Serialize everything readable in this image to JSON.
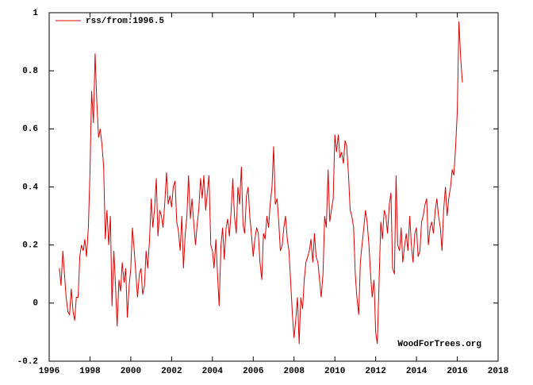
{
  "chart_data": {
    "type": "line",
    "annotation": "WoodForTrees.org",
    "x": [
      1996.5,
      1996.58,
      1996.67,
      1996.75,
      1996.83,
      1996.92,
      1997.0,
      1997.08,
      1997.17,
      1997.25,
      1997.33,
      1997.42,
      1997.5,
      1997.58,
      1997.67,
      1997.75,
      1997.83,
      1997.92,
      1998.0,
      1998.08,
      1998.17,
      1998.25,
      1998.33,
      1998.42,
      1998.5,
      1998.58,
      1998.67,
      1998.75,
      1998.83,
      1998.92,
      1999.0,
      1999.08,
      1999.17,
      1999.25,
      1999.33,
      1999.42,
      1999.5,
      1999.58,
      1999.67,
      1999.75,
      1999.83,
      1999.92,
      2000.0,
      2000.08,
      2000.17,
      2000.25,
      2000.33,
      2000.42,
      2000.5,
      2000.58,
      2000.67,
      2000.75,
      2000.83,
      2000.92,
      2001.0,
      2001.08,
      2001.17,
      2001.25,
      2001.33,
      2001.42,
      2001.5,
      2001.58,
      2001.67,
      2001.75,
      2001.83,
      2001.92,
      2002.0,
      2002.08,
      2002.17,
      2002.25,
      2002.33,
      2002.42,
      2002.5,
      2002.58,
      2002.67,
      2002.75,
      2002.83,
      2002.92,
      2003.0,
      2003.08,
      2003.17,
      2003.25,
      2003.33,
      2003.42,
      2003.5,
      2003.58,
      2003.67,
      2003.75,
      2003.83,
      2003.92,
      2004.0,
      2004.08,
      2004.17,
      2004.25,
      2004.33,
      2004.42,
      2004.5,
      2004.58,
      2004.67,
      2004.75,
      2004.83,
      2004.92,
      2005.0,
      2005.08,
      2005.17,
      2005.25,
      2005.33,
      2005.42,
      2005.5,
      2005.58,
      2005.67,
      2005.75,
      2005.83,
      2005.92,
      2006.0,
      2006.08,
      2006.17,
      2006.25,
      2006.33,
      2006.42,
      2006.5,
      2006.58,
      2006.67,
      2006.75,
      2006.83,
      2006.92,
      2007.0,
      2007.08,
      2007.17,
      2007.25,
      2007.33,
      2007.42,
      2007.5,
      2007.58,
      2007.67,
      2007.75,
      2007.83,
      2007.92,
      2008.0,
      2008.08,
      2008.17,
      2008.25,
      2008.33,
      2008.42,
      2008.5,
      2008.58,
      2008.67,
      2008.75,
      2008.83,
      2008.92,
      2009.0,
      2009.08,
      2009.17,
      2009.25,
      2009.33,
      2009.42,
      2009.5,
      2009.58,
      2009.67,
      2009.75,
      2009.83,
      2009.92,
      2010.0,
      2010.08,
      2010.17,
      2010.25,
      2010.33,
      2010.42,
      2010.5,
      2010.58,
      2010.67,
      2010.75,
      2010.83,
      2010.92,
      2011.0,
      2011.08,
      2011.17,
      2011.25,
      2011.33,
      2011.42,
      2011.5,
      2011.58,
      2011.67,
      2011.75,
      2011.83,
      2011.92,
      2012.0,
      2012.08,
      2012.17,
      2012.25,
      2012.33,
      2012.42,
      2012.5,
      2012.58,
      2012.67,
      2012.75,
      2012.83,
      2012.92,
      2013.0,
      2013.08,
      2013.17,
      2013.25,
      2013.33,
      2013.42,
      2013.5,
      2013.58,
      2013.67,
      2013.75,
      2013.83,
      2013.92,
      2014.0,
      2014.08,
      2014.17,
      2014.25,
      2014.33,
      2014.42,
      2014.5,
      2014.58,
      2014.67,
      2014.75,
      2014.83,
      2014.92,
      2015.0,
      2015.08,
      2015.17,
      2015.25,
      2015.33,
      2015.42,
      2015.5,
      2015.58,
      2015.67,
      2015.75,
      2015.83,
      2015.92,
      2016.0,
      2016.08,
      2016.17,
      2016.25
    ],
    "series": [
      {
        "name": "rss/from:1996.5",
        "color": "#dd0000",
        "values": [
          0.12,
          0.06,
          0.18,
          0.1,
          0.02,
          -0.03,
          -0.04,
          0.05,
          -0.03,
          -0.06,
          0.02,
          0.02,
          0.16,
          0.2,
          0.18,
          0.22,
          0.16,
          0.26,
          0.45,
          0.73,
          0.62,
          0.86,
          0.7,
          0.57,
          0.6,
          0.55,
          0.47,
          0.22,
          0.32,
          0.2,
          0.3,
          -0.01,
          0.18,
          0.06,
          -0.08,
          0.08,
          0.04,
          0.14,
          0.07,
          0.12,
          -0.05,
          0.06,
          0.12,
          0.26,
          0.18,
          0.1,
          0.02,
          0.1,
          0.12,
          0.03,
          0.06,
          0.18,
          0.12,
          0.22,
          0.36,
          0.26,
          0.33,
          0.43,
          0.23,
          0.32,
          0.3,
          0.26,
          0.35,
          0.45,
          0.34,
          0.37,
          0.33,
          0.4,
          0.42,
          0.28,
          0.25,
          0.18,
          0.3,
          0.12,
          0.24,
          0.3,
          0.44,
          0.29,
          0.36,
          0.28,
          0.2,
          0.27,
          0.32,
          0.43,
          0.36,
          0.44,
          0.32,
          0.38,
          0.44,
          0.2,
          0.18,
          0.12,
          0.22,
          0.1,
          -0.01,
          0.2,
          0.26,
          0.15,
          0.26,
          0.29,
          0.23,
          0.32,
          0.43,
          0.3,
          0.24,
          0.4,
          0.34,
          0.47,
          0.27,
          0.24,
          0.37,
          0.4,
          0.3,
          0.23,
          0.16,
          0.22,
          0.26,
          0.24,
          0.14,
          0.08,
          0.24,
          0.22,
          0.3,
          0.26,
          0.34,
          0.4,
          0.54,
          0.34,
          0.36,
          0.28,
          0.18,
          0.2,
          0.26,
          0.3,
          0.22,
          0.18,
          0.08,
          -0.04,
          -0.12,
          -0.06,
          0.02,
          -0.14,
          0.02,
          -0.02,
          0.08,
          0.14,
          0.16,
          0.18,
          0.22,
          0.14,
          0.24,
          0.16,
          0.14,
          0.08,
          0.02,
          0.1,
          0.3,
          0.26,
          0.46,
          0.28,
          0.32,
          0.36,
          0.58,
          0.52,
          0.58,
          0.5,
          0.52,
          0.48,
          0.56,
          0.54,
          0.44,
          0.32,
          0.3,
          0.26,
          0.1,
          0.02,
          -0.04,
          0.14,
          0.2,
          0.26,
          0.32,
          0.28,
          0.2,
          0.1,
          0.02,
          0.08,
          -0.1,
          -0.14,
          0.08,
          0.28,
          0.22,
          0.32,
          0.3,
          0.24,
          0.34,
          0.38,
          0.12,
          0.1,
          0.44,
          0.2,
          0.18,
          0.26,
          0.14,
          0.2,
          0.24,
          0.18,
          0.3,
          0.2,
          0.14,
          0.24,
          0.26,
          0.16,
          0.18,
          0.28,
          0.3,
          0.34,
          0.36,
          0.2,
          0.26,
          0.28,
          0.24,
          0.32,
          0.36,
          0.3,
          0.26,
          0.18,
          0.32,
          0.4,
          0.3,
          0.36,
          0.4,
          0.46,
          0.44,
          0.54,
          0.66,
          0.97,
          0.84,
          0.76
        ]
      }
    ],
    "xlim": [
      1996,
      2018
    ],
    "xticks": [
      1996,
      1998,
      2000,
      2002,
      2004,
      2006,
      2008,
      2010,
      2012,
      2014,
      2016,
      2018
    ],
    "ylim": [
      -0.2,
      1
    ],
    "yticks": [
      -0.2,
      0,
      0.2,
      0.4,
      0.6,
      0.8,
      1
    ],
    "legend": "top-left",
    "grid": false
  }
}
